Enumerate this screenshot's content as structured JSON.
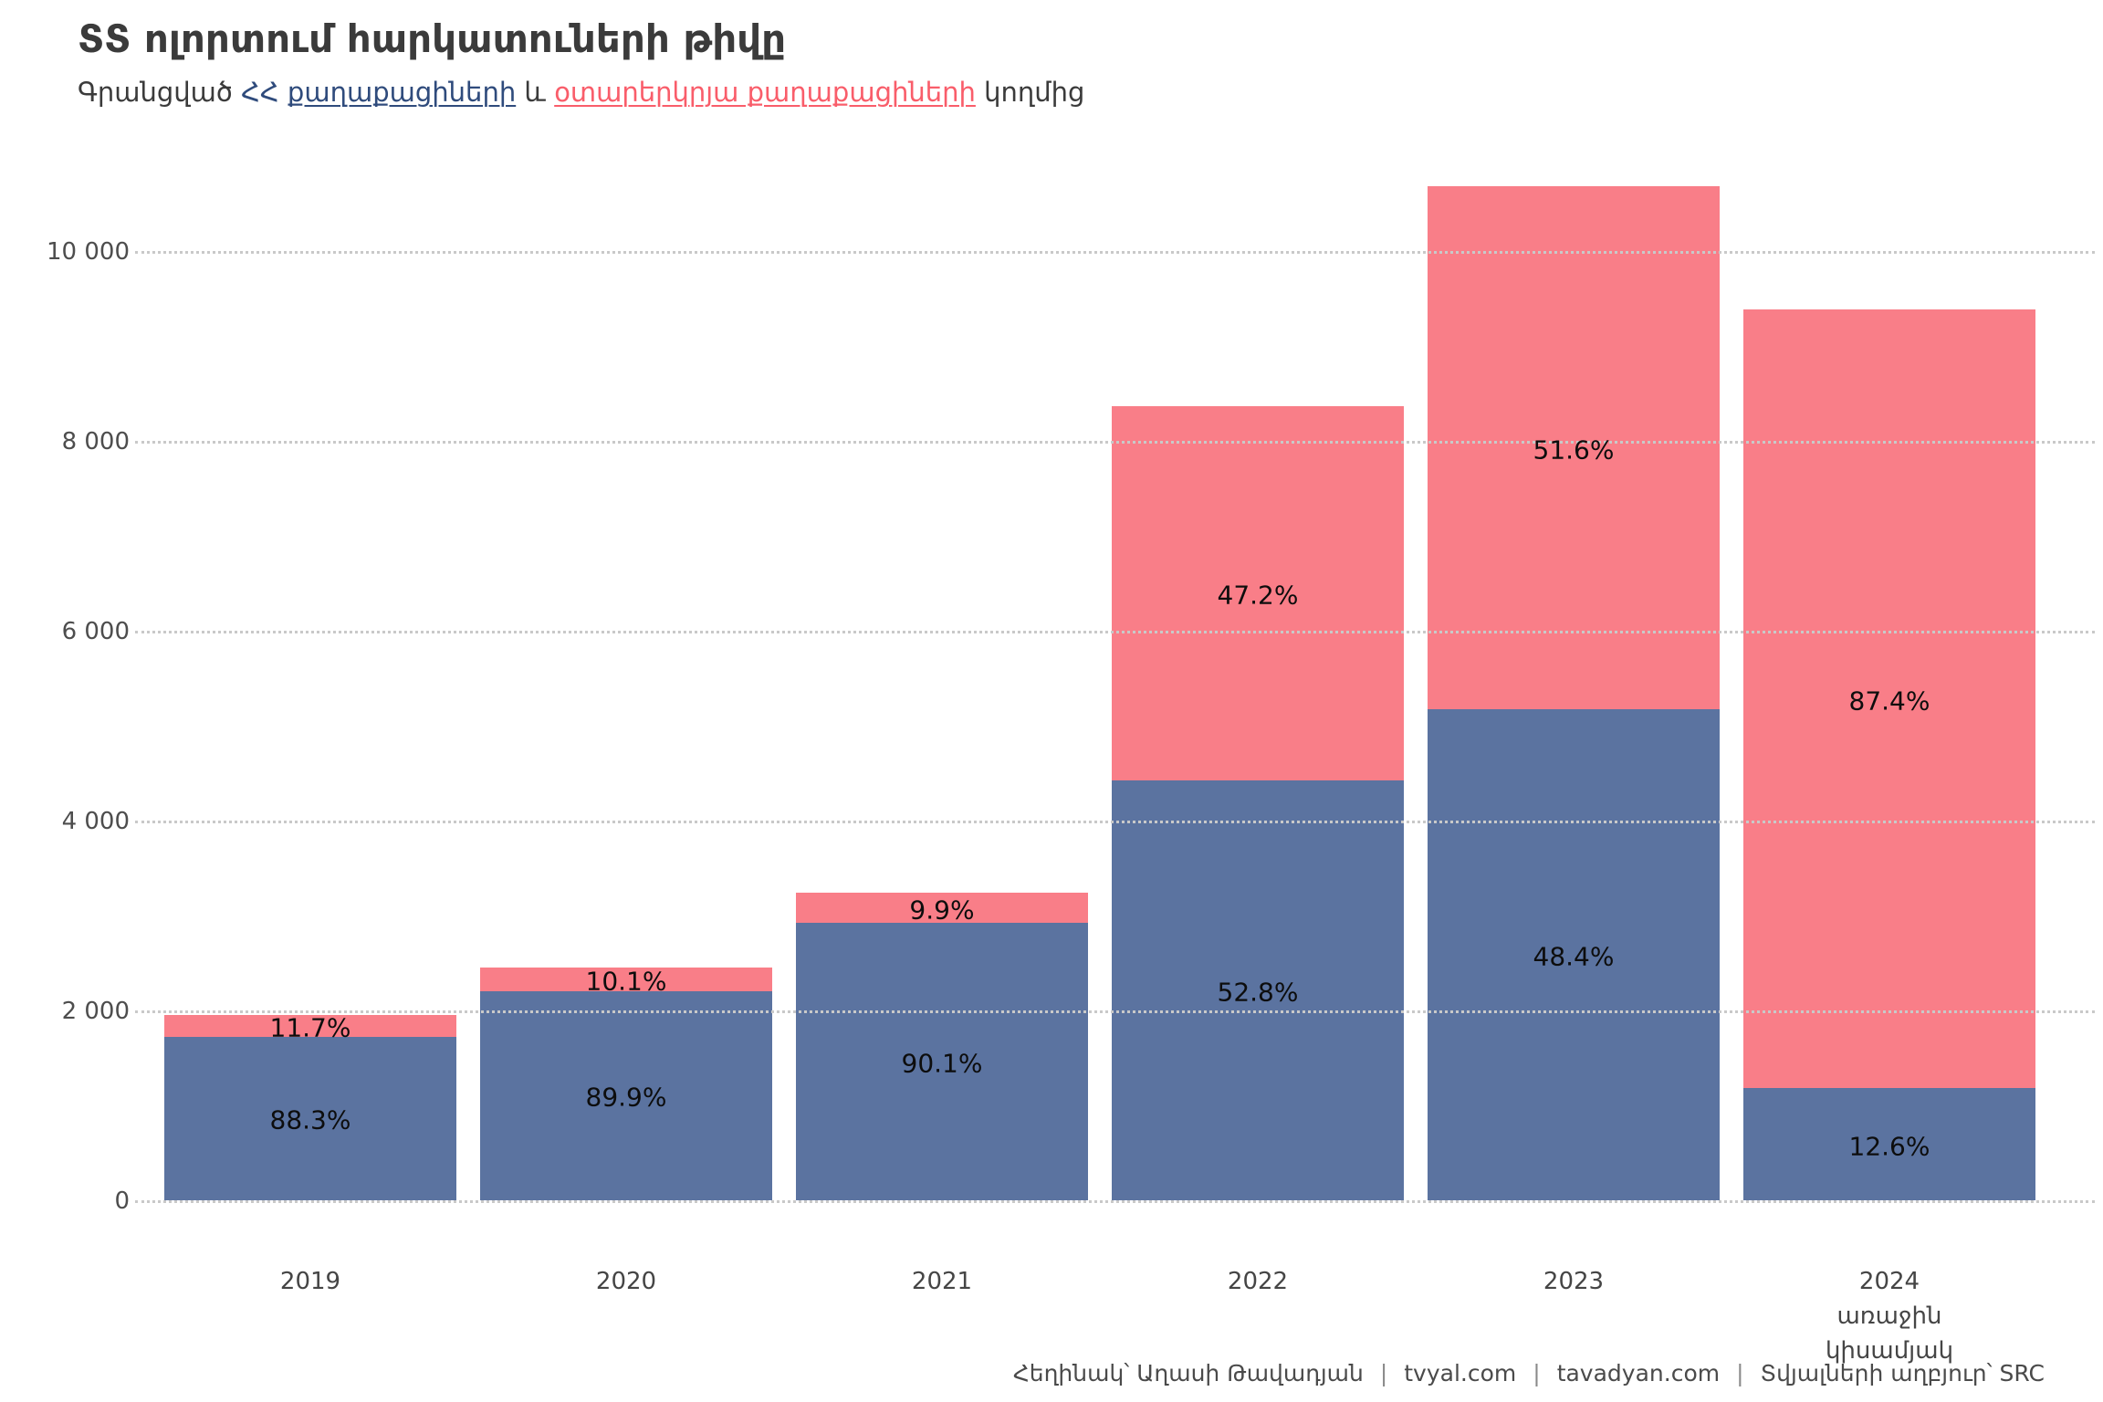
{
  "header": {
    "title_parts": [
      {
        "text": "ՏՏ ոլորտում հարկատուների թիվ",
        "style": "dark"
      },
      {
        "text": "ը",
        "style": "dark",
        "underline": true
      }
    ],
    "subtitle_parts": [
      {
        "text": "Գրանցված ",
        "style": "dark"
      },
      {
        "text": "ՀՀ ",
        "style": "blue"
      },
      {
        "text": "քաղաքացիների",
        "style": "blue",
        "underline": true
      },
      {
        "text": " և ",
        "style": "dark"
      },
      {
        "text": "օտարերկրյա քաղաքացիների",
        "style": "red",
        "underline": true
      },
      {
        "text": " կողմից",
        "style": "dark"
      }
    ]
  },
  "colors": {
    "dark": "#3b3b3b",
    "blue": "#2f4b7c",
    "red": "#f95d6a",
    "bar_blue": "#5b73a0",
    "bar_pink": "#f97e88",
    "gridline": "#c9c9c9"
  },
  "chart_data": {
    "type": "bar",
    "stacked": true,
    "title": "ՏՏ ոլորտում հարկատուների թիվը",
    "subtitle": "Գրանցված ՀՀ քաղաքացիների և օտարերկրյա քաղաքացիների կողմից",
    "categories": [
      "2019",
      "2020",
      "2021",
      "2022",
      "2023",
      "2024"
    ],
    "x_sublabels": {
      "2024": [
        "առաջին",
        "կիսամյակ"
      ]
    },
    "series": [
      {
        "name": "ՀՀ քաղաքացիներ",
        "color": "#5b73a0",
        "values": [
          1722,
          2203,
          2919,
          4419,
          5169,
          1182
        ],
        "labels": [
          "88.3%",
          "89.9%",
          "90.1%",
          "52.8%",
          "48.4%",
          "12.6%"
        ]
      },
      {
        "name": "օտարերկրյա քաղաքացիներ",
        "color": "#f97e88",
        "values": [
          228,
          247,
          321,
          3951,
          5511,
          8198
        ],
        "labels": [
          "11.7%",
          "10.1%",
          "9.9%",
          "47.2%",
          "51.6%",
          "87.4%"
        ]
      }
    ],
    "totals": [
      1950,
      2450,
      3240,
      8370,
      10680,
      9380
    ],
    "yticks": [
      {
        "value": 0,
        "label": "0"
      },
      {
        "value": 2000,
        "label": "2 000"
      },
      {
        "value": 4000,
        "label": "4 000"
      },
      {
        "value": 6000,
        "label": "6 000"
      },
      {
        "value": 8000,
        "label": "8 000"
      },
      {
        "value": 10000,
        "label": "10 000"
      }
    ],
    "ylim": [
      0,
      10800
    ],
    "grid": true,
    "legend": "none"
  },
  "footer": {
    "parts": [
      "Հեղինակ՝ Աղասի Թավադյան",
      "tvyal.com",
      "tavadyan.com",
      "Տվյալների աղբյուր՝ SRC"
    ],
    "separator": "|"
  }
}
